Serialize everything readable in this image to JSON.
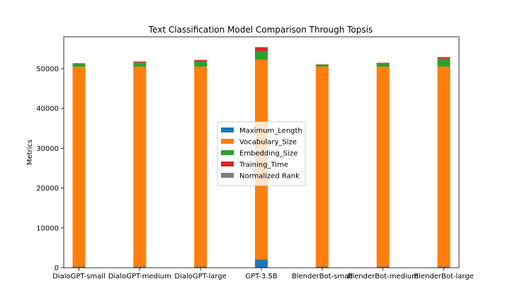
{
  "chart_data": {
    "type": "bar",
    "stacked": true,
    "title": "Text Classification Model Comparison Through Topsis",
    "xlabel": "",
    "ylabel": "Metrics",
    "ylim": [
      0,
      58000
    ],
    "yticks": [
      0,
      10000,
      20000,
      30000,
      40000,
      50000
    ],
    "grid": false,
    "legend_position": "center",
    "categories": [
      "DialoGPT-small",
      "DialoGPT-medium",
      "DialoGPT-large",
      "GPT-3.5B",
      "BlenderBot-small",
      "BlenderBot-medium",
      "BlenderBot-large"
    ],
    "series": [
      {
        "name": "Maximum_Length",
        "color": "#1f77b4",
        "values": [
          256,
          256,
          256,
          2048,
          256,
          256,
          256
        ]
      },
      {
        "name": "Vocabulary_Size",
        "color": "#ff7f0e",
        "values": [
          50257,
          50257,
          50257,
          50257,
          50257,
          50257,
          50257
        ]
      },
      {
        "name": "Embedding_Size",
        "color": "#2ca02c",
        "values": [
          768,
          1024,
          1280,
          2000,
          512,
          768,
          2000
        ]
      },
      {
        "name": "Training_Time",
        "color": "#d62728",
        "values": [
          100,
          250,
          400,
          1100,
          80,
          200,
          400
        ]
      },
      {
        "name": "Normalized Rank",
        "color": "#7f7f7f",
        "values": [
          0.2,
          0.4,
          0.6,
          1.0,
          0.1,
          0.3,
          0.7
        ]
      }
    ]
  }
}
